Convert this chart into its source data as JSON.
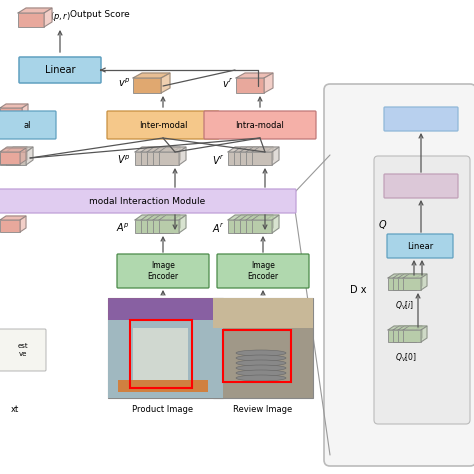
{
  "bg_color": "#ffffff",
  "colors": {
    "linear_box": "#a8d4e8",
    "inter_modal_box": "#f5c88a",
    "intra_modal_box": "#f5b0a8",
    "modal_interaction_bar": "#e0ccf0",
    "image_encoder_box": "#b0d8ae",
    "score_brick": "#e8a89c",
    "vp_brick": "#e0a870",
    "vr_brick": "#e8a89c",
    "feature_stack": "#b8ccaa",
    "vstack": "#c8c0b8",
    "right_top_box": "#b8d0ee",
    "right_mid_box": "#dcc8d8",
    "right_linear_box": "#a8d4e8",
    "left_blue_box": "#a8d4e8",
    "left_pink_brick": "#e8a89c",
    "text_box_partial": "#f8f0ee"
  },
  "texts": {
    "output_score": "Output Score",
    "inter_modal": "Inter-modal",
    "intra_modal": "Intra-modal",
    "modal_interaction": "modal Interaction Module",
    "image_encoder": "Image\nEncoder",
    "product_image": "Product Image",
    "review_image": "Review Image",
    "linear": "Linear",
    "d_x": "D x",
    "q": "Q",
    "al": "al",
    "est_ve": "est\nve"
  }
}
